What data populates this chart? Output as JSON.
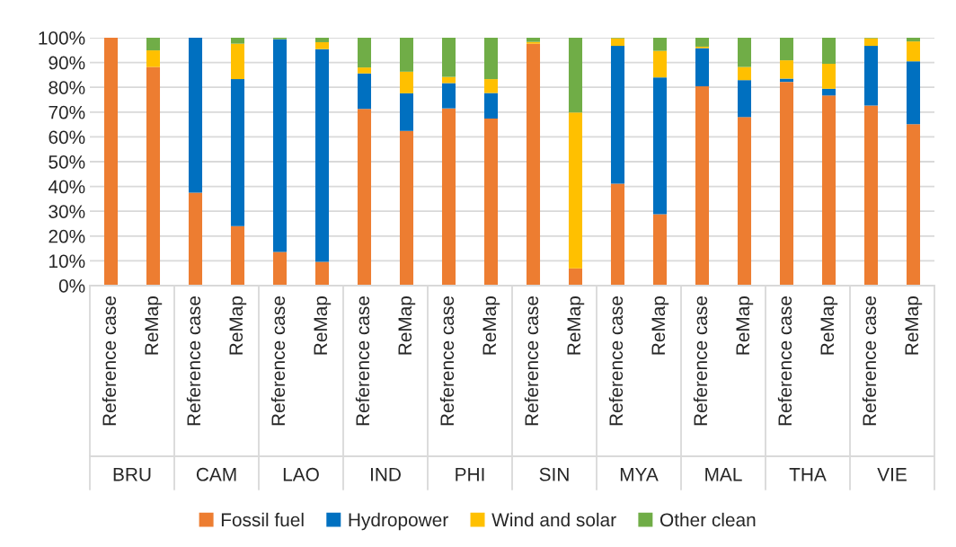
{
  "chart_data": {
    "type": "bar",
    "stacked": true,
    "categories": [
      "Reference case",
      "ReMap",
      "Reference case",
      "ReMap",
      "Reference case",
      "ReMap",
      "Reference case",
      "ReMap",
      "Reference case",
      "ReMap",
      "Reference case",
      "ReMap",
      "Reference case",
      "ReMap",
      "Reference case",
      "ReMap",
      "Reference case",
      "ReMap",
      "Reference case",
      "ReMap"
    ],
    "series": [
      {
        "name": "Fossil fuel",
        "color": "#ed7d31",
        "values": [
          100,
          88.2,
          37.5,
          24.0,
          13.6,
          9.6,
          71.3,
          62.4,
          71.5,
          67.4,
          97.6,
          7.0,
          41.1,
          28.8,
          80.4,
          68.0,
          82.2,
          76.7,
          72.6,
          65.1
        ]
      },
      {
        "name": "Hydropower",
        "color": "#0070c0",
        "values": [
          0,
          0,
          62.5,
          59.3,
          85.8,
          85.8,
          14.3,
          15.2,
          10.2,
          10.3,
          0,
          0,
          55.6,
          55.2,
          15.4,
          14.9,
          1.3,
          2.7,
          24.1,
          25.4
        ]
      },
      {
        "name": "Wind and solar",
        "color": "#ffc000",
        "values": [
          0,
          6.7,
          0,
          14.3,
          0,
          2.8,
          2.4,
          8.7,
          2.5,
          5.6,
          0.7,
          62.8,
          3.1,
          10.7,
          0.6,
          5.3,
          7.4,
          10.1,
          3.1,
          8.0
        ]
      },
      {
        "name": "Other clean",
        "color": "#70ad47",
        "values": [
          0,
          5.1,
          0,
          2.4,
          0.6,
          1.8,
          12.0,
          13.7,
          15.8,
          16.7,
          1.7,
          30.2,
          0.2,
          5.3,
          3.6,
          11.8,
          9.1,
          10.5,
          0.2,
          1.5
        ]
      }
    ],
    "annotations": [
      "BRU",
      "CAM",
      "LAO",
      "IND",
      "PHI",
      "SIN",
      "MYA",
      "MAL",
      "THA",
      "VIE"
    ],
    "ylim": [
      0,
      100
    ],
    "yticks": [
      {
        "value": 0,
        "label": "0%"
      },
      {
        "value": 10,
        "label": "10%"
      },
      {
        "value": 20,
        "label": "20%"
      },
      {
        "value": 30,
        "label": "30%"
      },
      {
        "value": 40,
        "label": "40%"
      },
      {
        "value": 50,
        "label": "50%"
      },
      {
        "value": 60,
        "label": "60%"
      },
      {
        "value": 70,
        "label": "70%"
      },
      {
        "value": 80,
        "label": "80%"
      },
      {
        "value": 90,
        "label": "90%"
      },
      {
        "value": 100,
        "label": "100%"
      }
    ],
    "grid": "y",
    "legend": "bottom"
  }
}
